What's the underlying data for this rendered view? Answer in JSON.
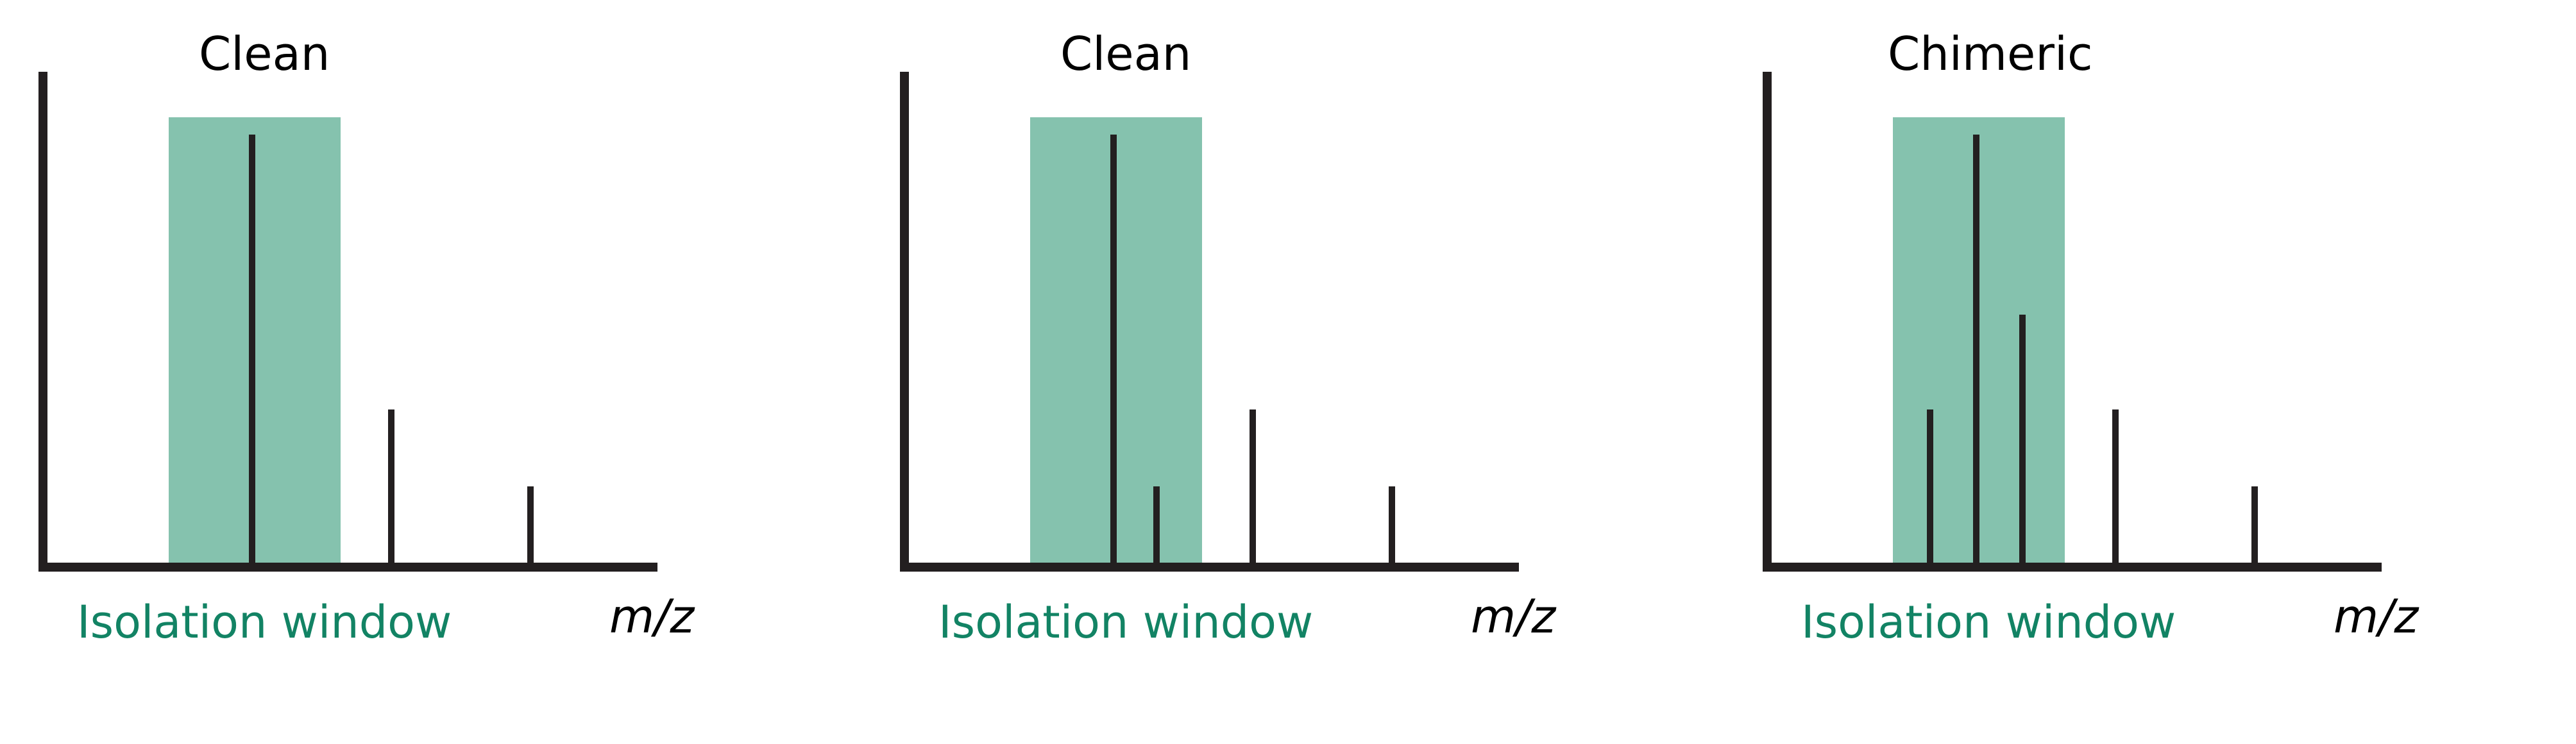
{
  "colors": {
    "window_fill": "#85c2ae",
    "window_label": "#128364",
    "axis": "#231f20",
    "peak": "#231f20"
  },
  "panels": [
    {
      "title": "Clean",
      "window_label": "Isolation window",
      "axis_label": "m/z",
      "peaks": [
        {
          "mz": 0.345,
          "intensity": 1.0
        },
        {
          "mz": 0.57,
          "intensity": 0.36
        },
        {
          "mz": 0.795,
          "intensity": 0.18
        }
      ]
    },
    {
      "title": "Clean",
      "window_label": "Isolation window",
      "axis_label": "m/z",
      "peaks": [
        {
          "mz": 0.345,
          "intensity": 1.0
        },
        {
          "mz": 0.415,
          "intensity": 0.18
        },
        {
          "mz": 0.57,
          "intensity": 0.36
        },
        {
          "mz": 0.795,
          "intensity": 0.18
        }
      ]
    },
    {
      "title": "Chimeric",
      "window_label": "Isolation window",
      "axis_label": "m/z",
      "peaks": [
        {
          "mz": 0.27,
          "intensity": 0.36
        },
        {
          "mz": 0.345,
          "intensity": 1.0
        },
        {
          "mz": 0.42,
          "intensity": 0.58
        },
        {
          "mz": 0.57,
          "intensity": 0.36
        },
        {
          "mz": 0.795,
          "intensity": 0.18
        }
      ],
      "note": ""
    }
  ]
}
